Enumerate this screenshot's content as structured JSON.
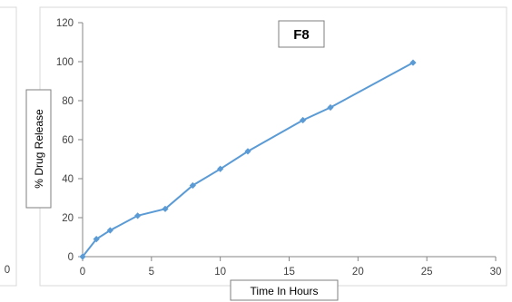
{
  "left_fragment": {
    "tick": "0"
  },
  "chart_data": {
    "type": "line",
    "title": "F8",
    "xlabel": "Time In Hours",
    "ylabel": "% Drug Release",
    "xlim": [
      0,
      30
    ],
    "ylim": [
      0,
      120
    ],
    "xticks": [
      "0",
      "5",
      "10",
      "15",
      "20",
      "25",
      "30"
    ],
    "yticks": [
      "0",
      "20",
      "40",
      "60",
      "80",
      "100",
      "120"
    ],
    "grid": false,
    "legend": "none",
    "series": [
      {
        "color": "#5b9bd5",
        "marker": "diamond",
        "x": [
          0,
          1,
          2,
          4,
          6,
          8,
          10,
          12,
          16,
          18,
          24
        ],
        "y": [
          0,
          9,
          13.5,
          21,
          24.5,
          36.5,
          45,
          54,
          70,
          76.5,
          99.5
        ]
      }
    ]
  }
}
